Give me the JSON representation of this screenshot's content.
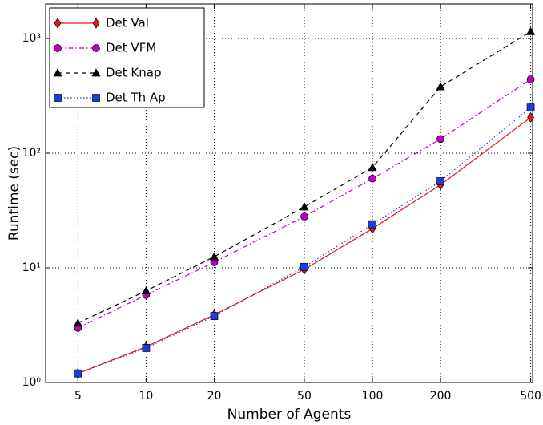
{
  "chart_data": {
    "type": "line",
    "xlabel": "Number of Agents",
    "ylabel": "Runtime (sec)",
    "x": [
      5,
      10,
      20,
      50,
      100,
      200,
      500
    ],
    "series": [
      {
        "name": "Det Val",
        "color": "#e8141c",
        "linestyle": "solid",
        "marker": "diamond",
        "values": [
          1.2,
          2.05,
          3.9,
          9.7,
          22,
          53,
          205
        ]
      },
      {
        "name": "Det VFM",
        "color": "#bf00bf",
        "linestyle": "dashdot",
        "marker": "circle",
        "values": [
          3.0,
          5.8,
          11.2,
          28,
          60,
          133,
          440
        ]
      },
      {
        "name": "Det Knap",
        "color": "#000000",
        "linestyle": "dashed",
        "marker": "triangle",
        "values": [
          3.3,
          6.3,
          12.5,
          34,
          75,
          380,
          1150
        ]
      },
      {
        "name": "Det Th Ap",
        "color": "#1a3fe0",
        "linestyle": "dotted",
        "marker": "square",
        "values": [
          1.2,
          2.0,
          3.8,
          10.2,
          24,
          57,
          250
        ]
      }
    ],
    "xlim": [
      3.6,
      510
    ],
    "ylim": [
      1,
      2000
    ],
    "xticks": [
      5,
      10,
      20,
      50,
      100,
      200,
      500
    ],
    "yticks": [
      {
        "value": 1,
        "label": "10⁰"
      },
      {
        "value": 10,
        "label": "10¹"
      },
      {
        "value": 100,
        "label": "10²"
      },
      {
        "value": 1000,
        "label": "10³"
      }
    ],
    "xscale": "log",
    "yscale": "log",
    "grid": true,
    "legend": "upper-left"
  }
}
